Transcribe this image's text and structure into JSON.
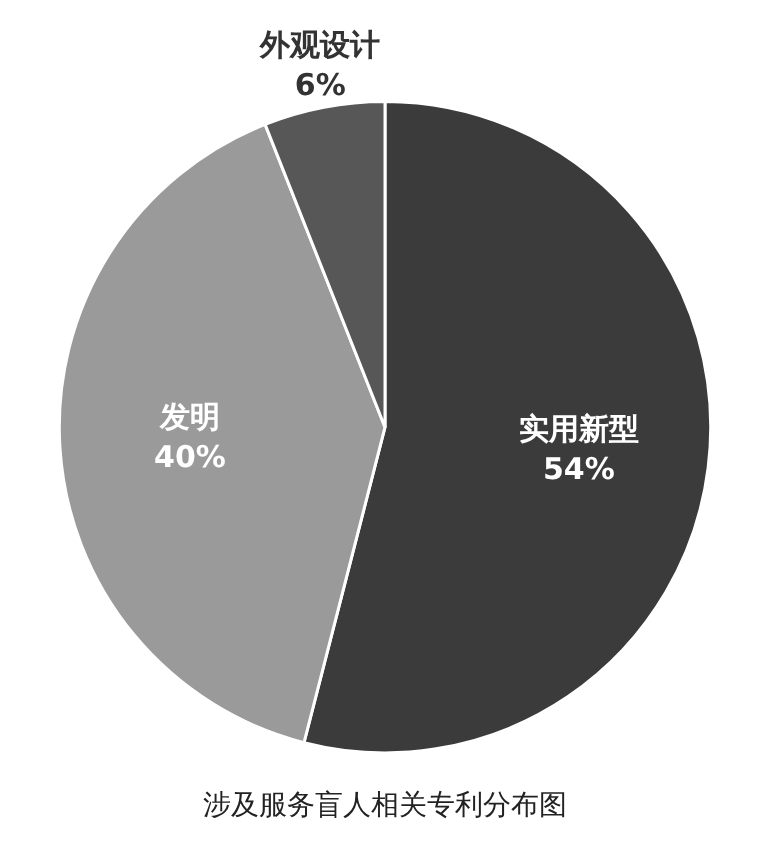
{
  "chart_data": {
    "type": "pie",
    "title": "涉及服务盲人相关专利分布图",
    "categories": [
      "实用新型",
      "发明",
      "外观设计"
    ],
    "values": [
      54,
      40,
      6
    ],
    "value_labels": [
      "54%",
      "40%",
      "6%"
    ],
    "colors": [
      "#3b3b3b",
      "#9a9a9a",
      "#575757"
    ]
  }
}
